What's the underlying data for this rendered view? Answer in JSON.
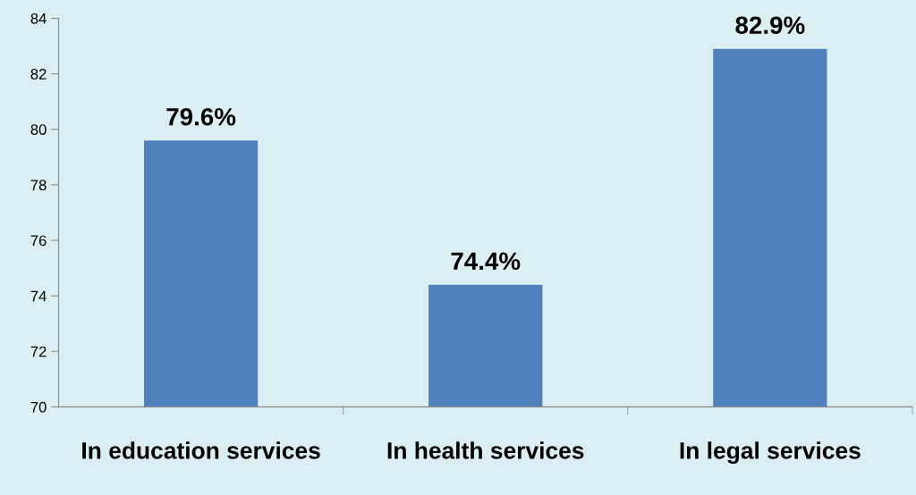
{
  "chart_data": {
    "type": "bar",
    "categories": [
      "In education services",
      "In health services",
      "In legal services"
    ],
    "values": [
      79.6,
      74.4,
      82.9
    ],
    "value_labels": [
      "79.6%",
      "74.4%",
      "82.9%"
    ],
    "color": "#4f81bd",
    "ylim": [
      70,
      84
    ],
    "yticks": [
      70,
      72,
      74,
      76,
      78,
      80,
      82,
      84
    ],
    "grid": false
  }
}
